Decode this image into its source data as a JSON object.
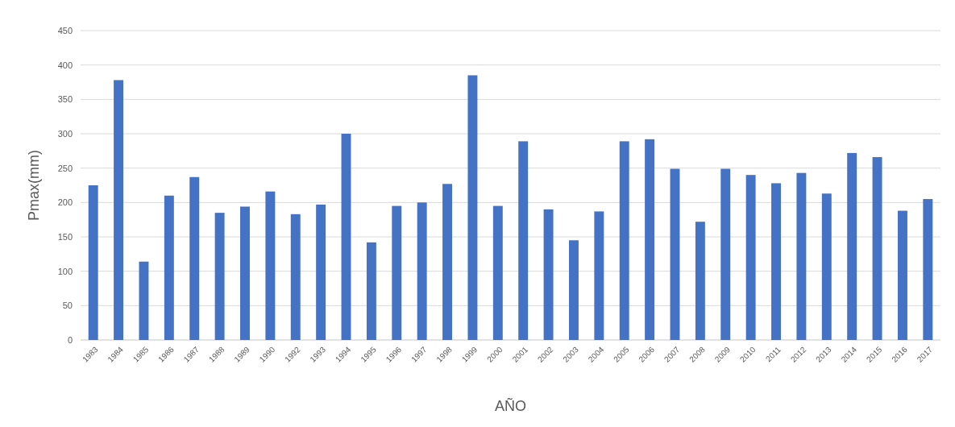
{
  "chart_data": {
    "type": "bar",
    "xlabel": "AÑO",
    "ylabel": "Pmax(mm)",
    "categories": [
      "1983",
      "1984",
      "1985",
      "1986",
      "1987",
      "1988",
      "1989",
      "1990",
      "1992",
      "1993",
      "1994",
      "1995",
      "1996",
      "1997",
      "1998",
      "1999",
      "2000",
      "2001",
      "2002",
      "2003",
      "2004",
      "2005",
      "2006",
      "2007",
      "2008",
      "2009",
      "2010",
      "2011",
      "2012",
      "2013",
      "2014",
      "2015",
      "2016",
      "2017"
    ],
    "values": [
      225,
      378,
      114,
      210,
      237,
      185,
      194,
      216,
      183,
      197,
      300,
      142,
      195,
      200,
      227,
      385,
      195,
      289,
      190,
      145,
      187,
      289,
      292,
      249,
      172,
      249,
      240,
      228,
      243,
      213,
      272,
      266,
      188,
      205
    ],
    "color": "#4472c4",
    "ylim": [
      0,
      450
    ],
    "yticks": [
      0,
      50,
      100,
      150,
      200,
      250,
      300,
      350,
      400,
      450
    ],
    "grid": "y"
  }
}
